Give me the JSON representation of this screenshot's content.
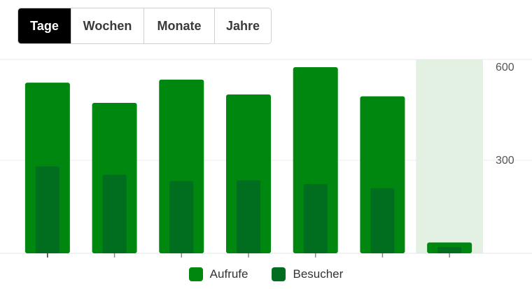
{
  "tabs": [
    {
      "label": "Tage",
      "active": true
    },
    {
      "label": "Wochen",
      "active": false
    },
    {
      "label": "Monate",
      "active": false
    },
    {
      "label": "Jahre",
      "active": false
    }
  ],
  "chart_data": {
    "type": "bar",
    "categories": [
      "",
      "",
      "",
      "",
      "",
      "",
      ""
    ],
    "series": [
      {
        "name": "Aufrufe",
        "color": "#00870f",
        "values": [
          550,
          485,
          560,
          512,
          600,
          506,
          35
        ]
      },
      {
        "name": "Besucher",
        "color": "#006e1e",
        "values": [
          280,
          253,
          233,
          235,
          223,
          210,
          20
        ]
      }
    ],
    "highlight_index": 6,
    "highlight_color": "#e3f1e3",
    "ylim": [
      0,
      600
    ],
    "yticks": [
      "300",
      "600"
    ],
    "ytick_values": [
      300,
      600
    ],
    "gridlines": true,
    "legend_position": "bottom"
  }
}
